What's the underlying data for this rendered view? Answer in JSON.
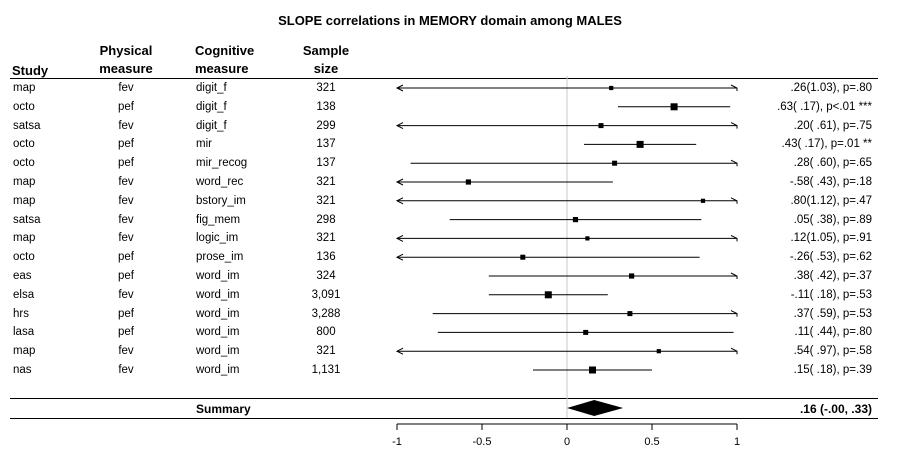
{
  "title": "SLOPE correlations in MEMORY domain among MALES",
  "headers": {
    "study": "Study",
    "physical_1": "Physical",
    "physical_2": "measure",
    "cognitive_1": "Cognitive",
    "cognitive_2": "measure",
    "size_1": "Sample",
    "size_2": "size"
  },
  "summary": {
    "label": "Summary",
    "stat": ".16 (-.00, .33)"
  },
  "chart_data": {
    "type": "forest",
    "title": "SLOPE correlations in MEMORY domain among MALES",
    "xlim": [
      -1,
      1
    ],
    "ticks": [
      -1,
      -0.5,
      0,
      0.5,
      1
    ],
    "tick_labels": [
      "-1",
      "-0.5",
      "0",
      "0.5",
      "1"
    ],
    "rows": [
      {
        "study": "map",
        "physical": "fev",
        "cognitive": "digit_f",
        "n": "321",
        "est": 0.26,
        "lo": -1.0,
        "hi": 1.0,
        "arrow_lo": true,
        "arrow_hi": true,
        "weight": 0.3,
        "label": ".26(1.03), p=.80"
      },
      {
        "study": "octo",
        "physical": "pef",
        "cognitive": "digit_f",
        "n": "138",
        "est": 0.63,
        "lo": 0.3,
        "hi": 0.96,
        "arrow_lo": false,
        "arrow_hi": false,
        "weight": 1.0,
        "label": ".63( .17), p<.01 ***"
      },
      {
        "study": "satsa",
        "physical": "fev",
        "cognitive": "digit_f",
        "n": "299",
        "est": 0.2,
        "lo": -1.0,
        "hi": 1.0,
        "arrow_lo": true,
        "arrow_hi": true,
        "weight": 0.5,
        "label": ".20( .61), p=.75"
      },
      {
        "study": "octo",
        "physical": "pef",
        "cognitive": "mir",
        "n": "137",
        "est": 0.43,
        "lo": 0.1,
        "hi": 0.76,
        "arrow_lo": false,
        "arrow_hi": false,
        "weight": 1.0,
        "label": ".43( .17), p=.01 **"
      },
      {
        "study": "octo",
        "physical": "pef",
        "cognitive": "mir_recog",
        "n": "137",
        "est": 0.28,
        "lo": -0.92,
        "hi": 1.0,
        "arrow_lo": false,
        "arrow_hi": true,
        "weight": 0.5,
        "label": ".28( .60), p=.65"
      },
      {
        "study": "map",
        "physical": "fev",
        "cognitive": "word_rec",
        "n": "321",
        "est": -0.58,
        "lo": -1.0,
        "hi": 0.27,
        "arrow_lo": true,
        "arrow_hi": false,
        "weight": 0.55,
        "label": "-.58( .43), p=.18"
      },
      {
        "study": "map",
        "physical": "fev",
        "cognitive": "bstory_im",
        "n": "321",
        "est": 0.8,
        "lo": -1.0,
        "hi": 1.0,
        "arrow_lo": true,
        "arrow_hi": true,
        "weight": 0.3,
        "label": ".80(1.12), p=.47"
      },
      {
        "study": "satsa",
        "physical": "fev",
        "cognitive": "fig_mem",
        "n": "298",
        "est": 0.05,
        "lo": -0.69,
        "hi": 0.79,
        "arrow_lo": false,
        "arrow_hi": false,
        "weight": 0.55,
        "label": ".05( .38), p=.89"
      },
      {
        "study": "map",
        "physical": "fev",
        "cognitive": "logic_im",
        "n": "321",
        "est": 0.12,
        "lo": -1.0,
        "hi": 1.0,
        "arrow_lo": true,
        "arrow_hi": true,
        "weight": 0.3,
        "label": ".12(1.05), p=.91"
      },
      {
        "study": "octo",
        "physical": "pef",
        "cognitive": "prose_im",
        "n": "136",
        "est": -0.26,
        "lo": -1.0,
        "hi": 0.78,
        "arrow_lo": true,
        "arrow_hi": false,
        "weight": 0.5,
        "label": "-.26( .53), p=.62"
      },
      {
        "study": "eas",
        "physical": "pef",
        "cognitive": "word_im",
        "n": "324",
        "est": 0.38,
        "lo": -0.46,
        "hi": 1.0,
        "arrow_lo": false,
        "arrow_hi": true,
        "weight": 0.55,
        "label": ".38( .42), p=.37"
      },
      {
        "study": "elsa",
        "physical": "fev",
        "cognitive": "word_im",
        "n": "3,091",
        "est": -0.11,
        "lo": -0.46,
        "hi": 0.24,
        "arrow_lo": false,
        "arrow_hi": false,
        "weight": 1.0,
        "label": "-.11( .18), p=.53"
      },
      {
        "study": "hrs",
        "physical": "pef",
        "cognitive": "word_im",
        "n": "3,288",
        "est": 0.37,
        "lo": -0.79,
        "hi": 1.0,
        "arrow_lo": false,
        "arrow_hi": true,
        "weight": 0.5,
        "label": ".37( .59), p=.53"
      },
      {
        "study": "lasa",
        "physical": "pef",
        "cognitive": "word_im",
        "n": "800",
        "est": 0.11,
        "lo": -0.76,
        "hi": 0.98,
        "arrow_lo": false,
        "arrow_hi": false,
        "weight": 0.5,
        "label": ".11( .44), p=.80"
      },
      {
        "study": "map",
        "physical": "fev",
        "cognitive": "word_im",
        "n": "321",
        "est": 0.54,
        "lo": -1.0,
        "hi": 1.0,
        "arrow_lo": true,
        "arrow_hi": true,
        "weight": 0.3,
        "label": ".54( .97), p=.58"
      },
      {
        "study": "nas",
        "physical": "fev",
        "cognitive": "word_im",
        "n": "1,131",
        "est": 0.15,
        "lo": -0.2,
        "hi": 0.5,
        "arrow_lo": false,
        "arrow_hi": false,
        "weight": 1.0,
        "label": ".15( .18), p=.39"
      }
    ],
    "summary": {
      "est": 0.16,
      "lo": -0.0,
      "hi": 0.33,
      "shape": "diamond"
    },
    "reference_line": 0
  }
}
